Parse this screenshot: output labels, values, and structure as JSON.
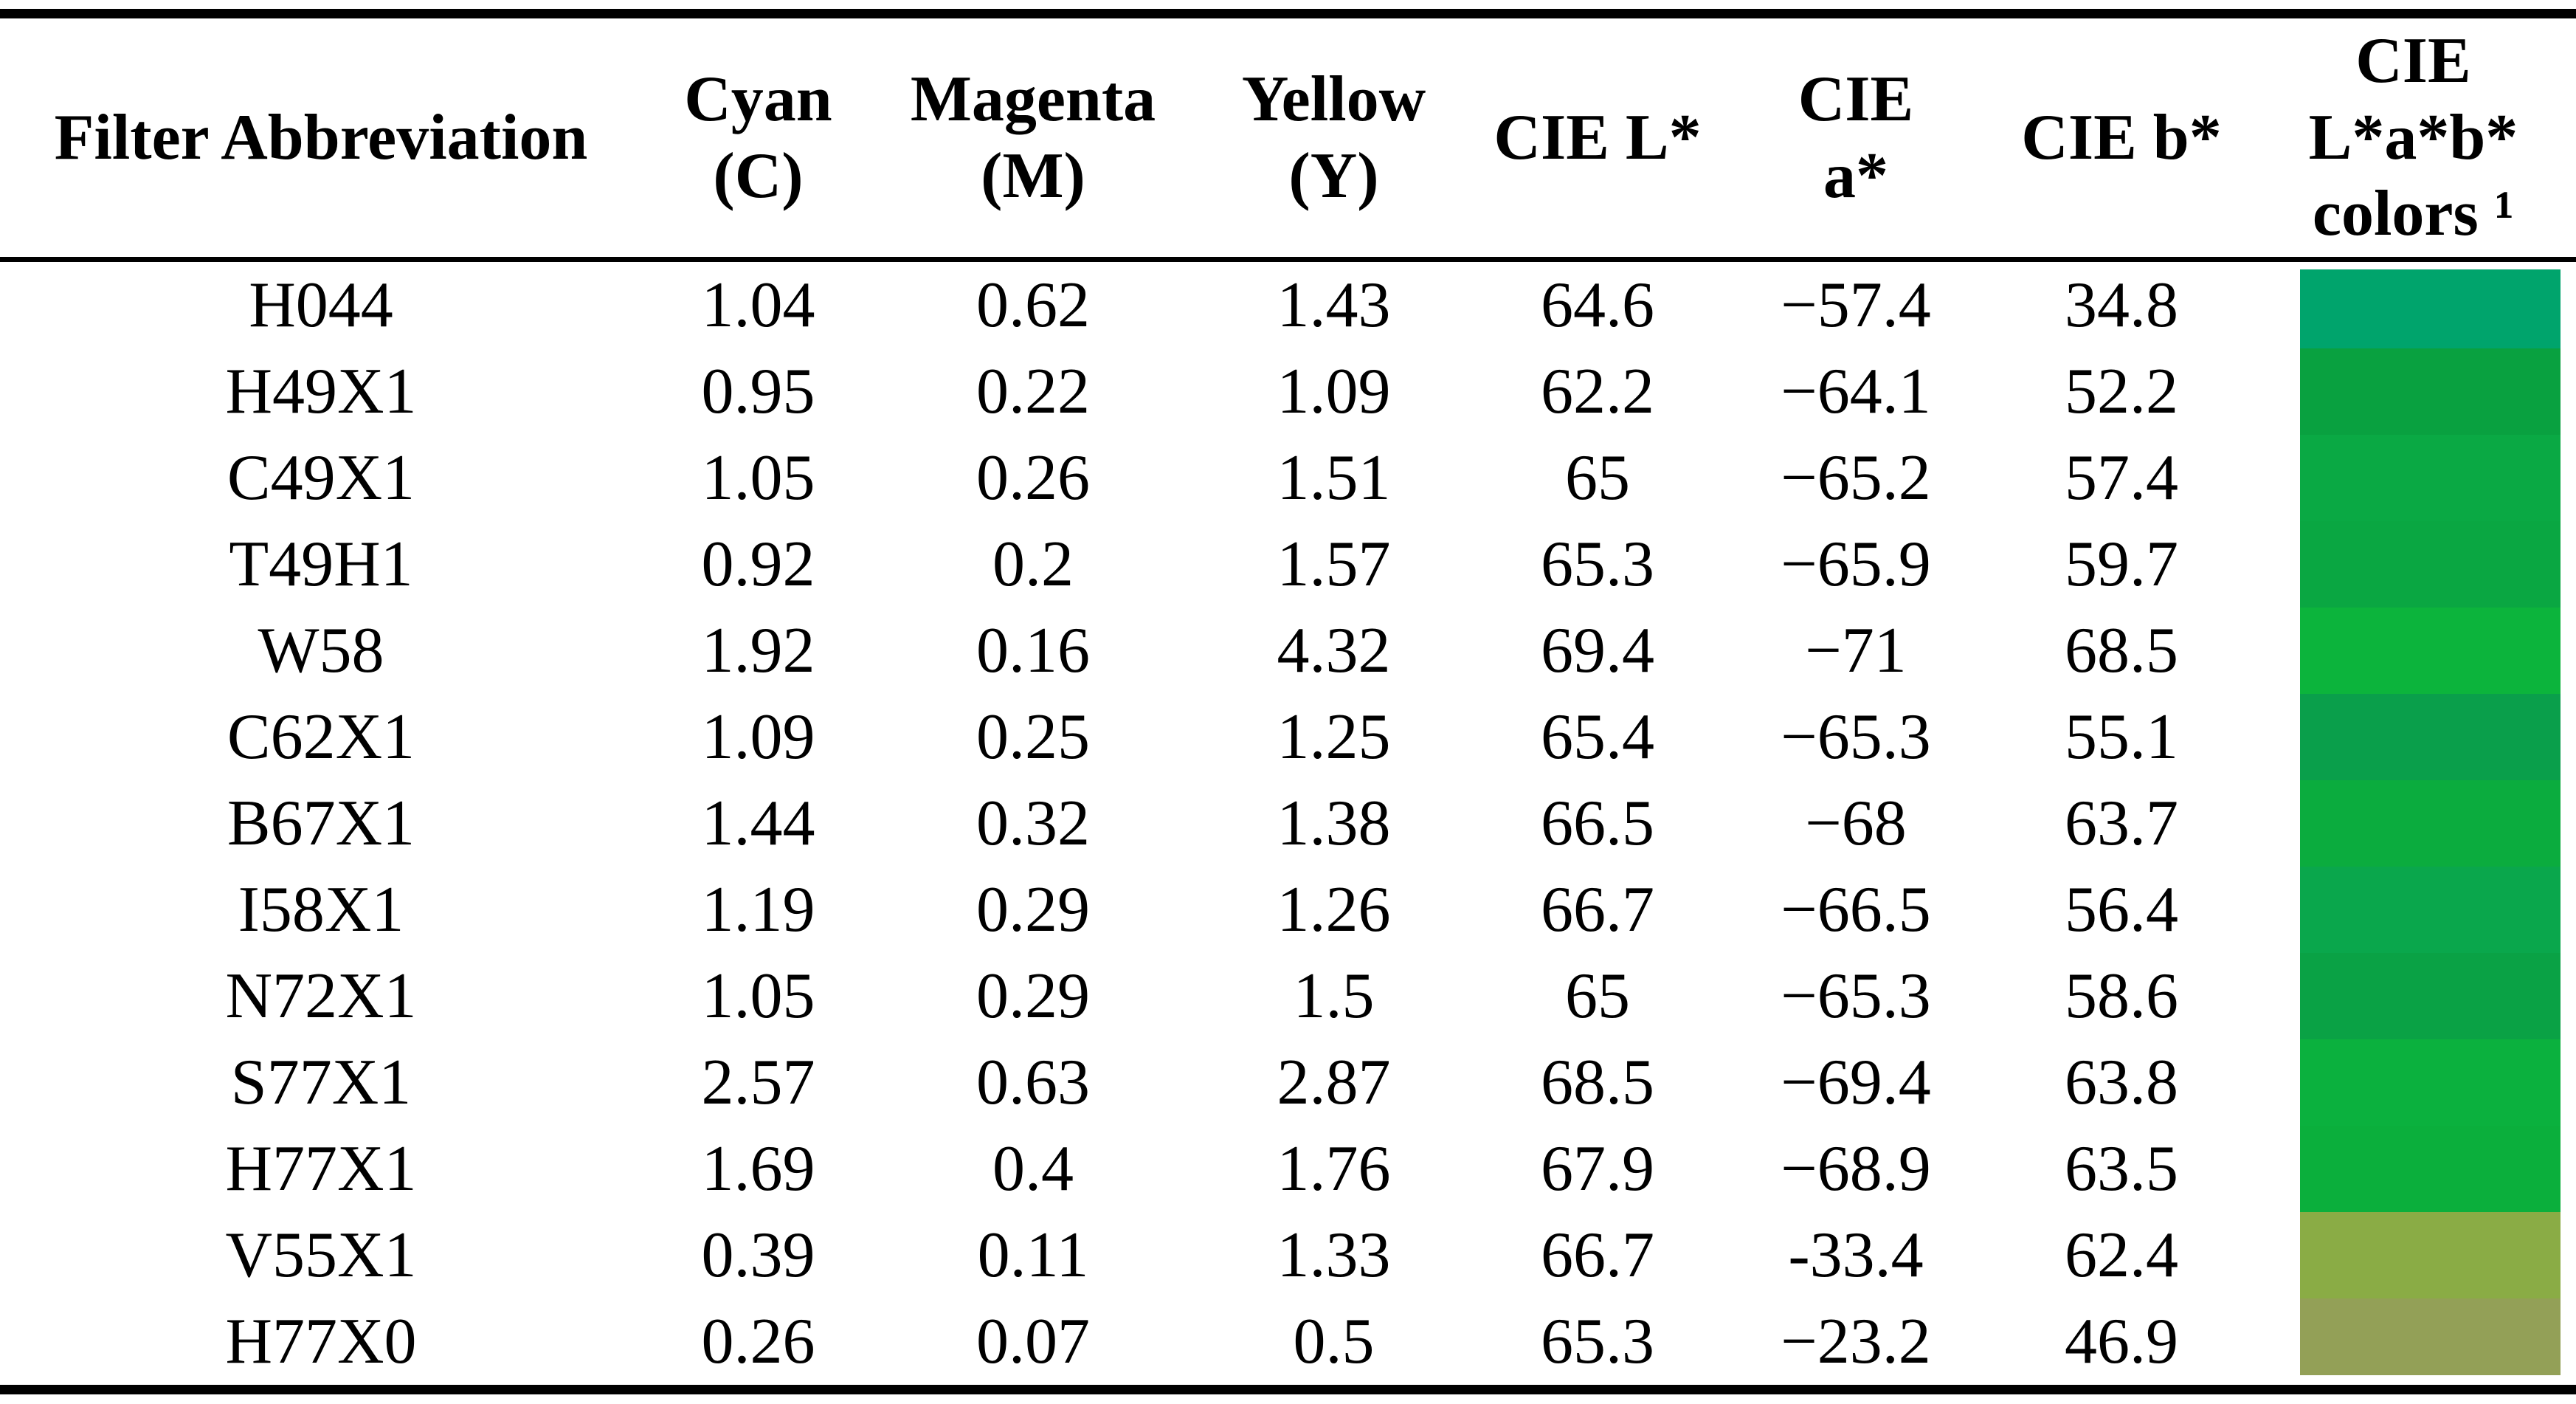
{
  "table": {
    "headers": [
      {
        "id": "filter",
        "lines": [
          "Filter Abbreviation"
        ]
      },
      {
        "id": "cyan",
        "lines": [
          "Cyan",
          "(C)"
        ]
      },
      {
        "id": "magenta",
        "lines": [
          "Magenta",
          "(M)"
        ]
      },
      {
        "id": "yellow",
        "lines": [
          "Yellow",
          "(Y)"
        ]
      },
      {
        "id": "cie-l",
        "lines": [
          "CIE L*"
        ]
      },
      {
        "id": "cie-a",
        "lines": [
          "CIE",
          "a*"
        ]
      },
      {
        "id": "cie-b",
        "lines": [
          "CIE b*"
        ]
      },
      {
        "id": "colors",
        "lines": [
          "CIE",
          "L*a*b*",
          "colors ¹"
        ]
      }
    ],
    "rows": [
      {
        "filter": "H044",
        "c": "1.04",
        "m": "0.62",
        "y": "1.43",
        "l": "64.6",
        "a": "−57.4",
        "b": "34.8",
        "color": "#00A46C"
      },
      {
        "filter": "H49X1",
        "c": "0.95",
        "m": "0.22",
        "y": "1.09",
        "l": "62.2",
        "a": "−64.1",
        "b": "52.2",
        "color": "#09A140"
      },
      {
        "filter": "C49X1",
        "c": "1.05",
        "m": "0.26",
        "y": "1.51",
        "l": "65",
        "a": "−65.2",
        "b": "57.4",
        "color": "#0AA944"
      },
      {
        "filter": "T49H1",
        "c": "0.92",
        "m": "0.2",
        "y": "1.57",
        "l": "65.3",
        "a": "−65.9",
        "b": "59.7",
        "color": "#0AA742"
      },
      {
        "filter": "W58",
        "c": "1.92",
        "m": "0.16",
        "y": "4.32",
        "l": "69.4",
        "a": "−71",
        "b": "68.5",
        "color": "#0CB43C"
      },
      {
        "filter": "C62X1",
        "c": "1.09",
        "m": "0.25",
        "y": "1.25",
        "l": "65.4",
        "a": "−65.3",
        "b": "55.1",
        "color": "#0A9F4B"
      },
      {
        "filter": "B67X1",
        "c": "1.44",
        "m": "0.32",
        "y": "1.38",
        "l": "66.5",
        "a": "−68",
        "b": "63.7",
        "color": "#0BAC3E"
      },
      {
        "filter": "I58X1",
        "c": "1.19",
        "m": "0.29",
        "y": "1.26",
        "l": "66.7",
        "a": "−66.5",
        "b": "56.4",
        "color": "#0AA74C"
      },
      {
        "filter": "N72X1",
        "c": "1.05",
        "m": "0.29",
        "y": "1.5",
        "l": "65",
        "a": "−65.3",
        "b": "58.6",
        "color": "#0AA245"
      },
      {
        "filter": "S77X1",
        "c": "2.57",
        "m": "0.63",
        "y": "2.87",
        "l": "68.5",
        "a": "−69.4",
        "b": "63.8",
        "color": "#0BB13E"
      },
      {
        "filter": "H77X1",
        "c": "1.69",
        "m": "0.4",
        "y": "1.76",
        "l": "67.9",
        "a": "−68.9",
        "b": "63.5",
        "color": "#0BAF3C"
      },
      {
        "filter": "V55X1",
        "c": "0.39",
        "m": "0.11",
        "y": "1.33",
        "l": "66.7",
        "a": "-33.4",
        "b": "62.4",
        "color": "#8AAC45"
      },
      {
        "filter": "H77X0",
        "c": "0.26",
        "m": "0.07",
        "y": "0.5",
        "l": "65.3",
        "a": "−23.2",
        "b": "46.9",
        "color": "#93A057"
      }
    ]
  }
}
